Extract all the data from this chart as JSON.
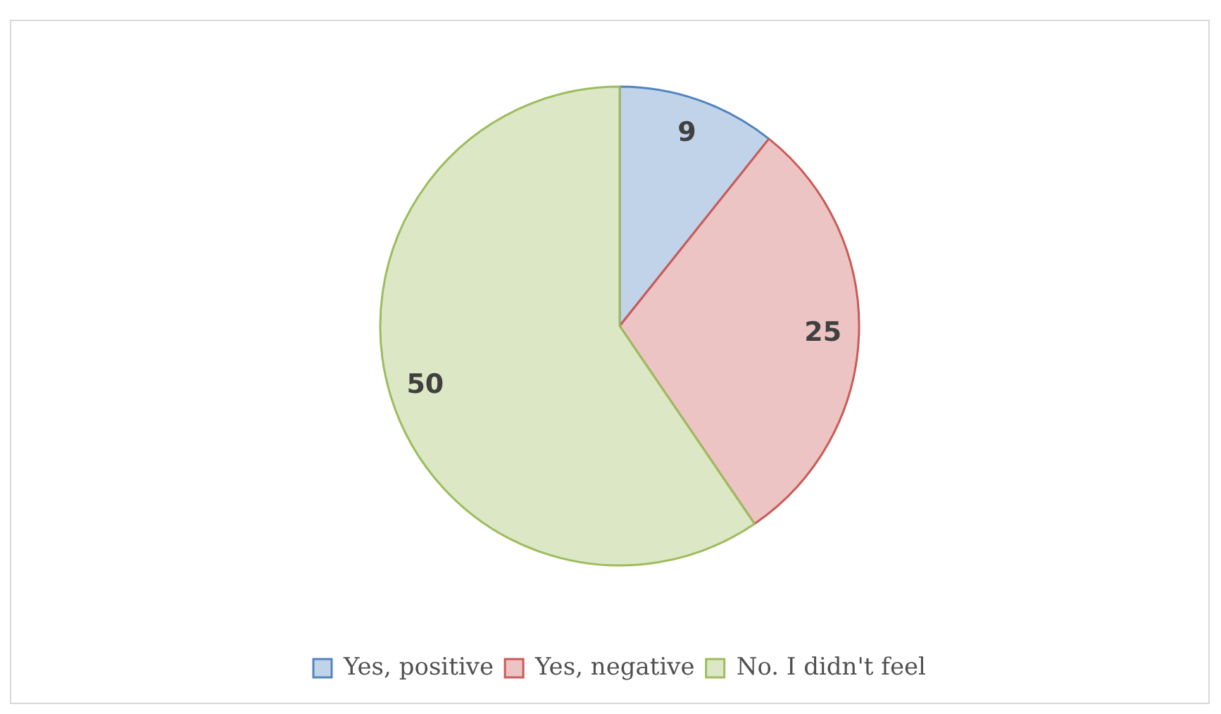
{
  "chart_data": {
    "type": "pie",
    "categories": [
      "Yes, positive",
      "Yes, negative",
      "No. I didn't feel"
    ],
    "values": [
      9,
      25,
      50
    ],
    "colors": [
      "#c1d3e8",
      "#ecc4c3",
      "#dce7c5"
    ],
    "data_labels": true,
    "legend": "bottom"
  }
}
